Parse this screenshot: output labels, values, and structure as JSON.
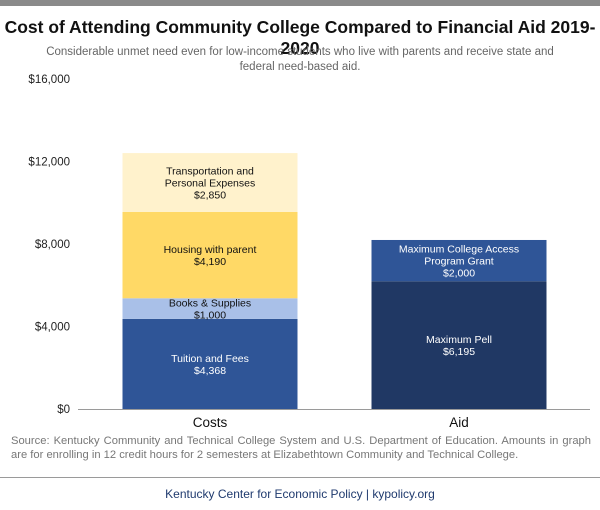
{
  "title": "Cost of Attending Community College Compared to Financial Aid 2019-2020",
  "subtitle": "Considerable unmet need even for low-income students who live with parents and receive state and federal need-based aid.",
  "source": "Source: Kentucky Community and Technical College System and U.S. Department of Education. Amounts in graph are for enrolling in 12 credit hours for 2 semesters at Elizabethtown Community and Technical College.",
  "footer": "Kentucky Center for Economic Policy | kypolicy.org",
  "chart_data": {
    "type": "bar",
    "stacked": true,
    "title": "Cost of Attending Community College Compared to Financial Aid 2019-2020",
    "categories": [
      "Costs",
      "Aid"
    ],
    "ylim": [
      0,
      16000
    ],
    "yticks": [
      0,
      4000,
      8000,
      12000,
      16000
    ],
    "ytick_labels": [
      "$0",
      "$4,000",
      "$8,000",
      "$12,000",
      "$16,000"
    ],
    "grid": false,
    "stacks": [
      {
        "category": "Costs",
        "segments": [
          {
            "label": "Tuition and Fees",
            "value": 4368,
            "value_label": "$4,368",
            "color": "#2f5597",
            "text_color": "#ffffff"
          },
          {
            "label": "Books & Supplies",
            "value": 1000,
            "value_label": "$1,000",
            "color": "#a9c0e8",
            "text_color": "#111111"
          },
          {
            "label": "Housing with parent",
            "value": 4190,
            "value_label": "$4,190",
            "color": "#ffd966",
            "text_color": "#111111"
          },
          {
            "label": "Transportation and Personal Expenses",
            "value": 2850,
            "value_label": "$2,850",
            "color": "#fff2cc",
            "text_color": "#111111"
          }
        ]
      },
      {
        "category": "Aid",
        "segments": [
          {
            "label": "Maximum Pell",
            "value": 6195,
            "value_label": "$6,195",
            "color": "#203864",
            "text_color": "#ffffff"
          },
          {
            "label": "Maximum College Access Program Grant",
            "value": 2000,
            "value_label": "$2,000",
            "color": "#2f5597",
            "text_color": "#ffffff"
          }
        ]
      }
    ]
  }
}
